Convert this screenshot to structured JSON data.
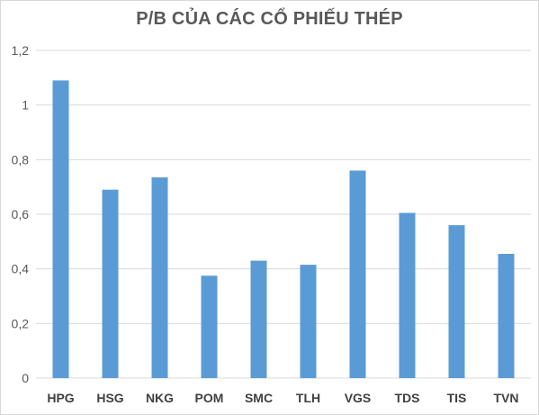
{
  "chart_data": {
    "type": "bar",
    "title": "P/B CỦA CÁC CỔ PHIẾU THÉP",
    "categories": [
      "HPG",
      "HSG",
      "NKG",
      "POM",
      "SMC",
      "TLH",
      "VGS",
      "TDS",
      "TIS",
      "TVN"
    ],
    "series": [
      {
        "values": [
          1.09,
          0.69,
          0.735,
          0.375,
          0.43,
          0.415,
          0.76,
          0.605,
          0.56,
          0.455
        ]
      }
    ],
    "ylim": [
      0,
      1.2
    ],
    "yticks": [
      "0",
      "0,2",
      "0,4",
      "0,6",
      "0,8",
      "1",
      "1,2"
    ],
    "ytick_values": [
      0,
      0.2,
      0.4,
      0.6,
      0.8,
      1.0,
      1.2
    ],
    "grid": "horizontal",
    "legend": "none",
    "bar_color": "#5b9bd5"
  }
}
